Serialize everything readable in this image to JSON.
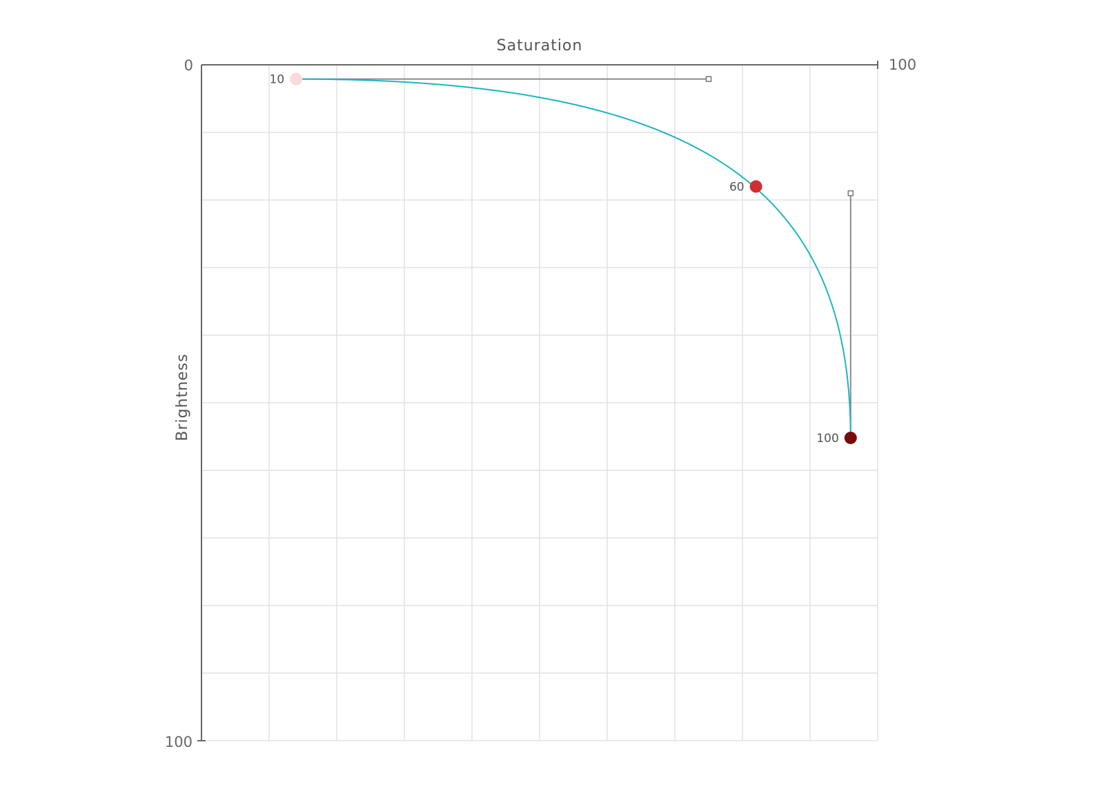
{
  "chart_data": {
    "type": "line",
    "xlabel": "Saturation",
    "ylabel": "Brightness",
    "xlim": [
      0,
      100
    ],
    "ylim": [
      0,
      100
    ],
    "x_axis_position": "top",
    "y_axis_inverted": true,
    "x_end_labels": {
      "min": "0",
      "max": "100"
    },
    "y_end_labels": {
      "min": "0",
      "max": "100"
    },
    "grid": true,
    "grid_divisions": 10,
    "curve_color": "#1ab5c4",
    "curve": {
      "type": "cubic-bezier",
      "start": {
        "x": 14,
        "y": 2.1
      },
      "control1": {
        "x": 75,
        "y": 2.1
      },
      "control2": {
        "x": 96,
        "y": 19
      },
      "end": {
        "x": 96,
        "y": 55.2
      }
    },
    "points": [
      {
        "label": "10",
        "x": 14,
        "y": 2.1,
        "color": "#fadada"
      },
      {
        "label": "60",
        "x": 82,
        "y": 18,
        "color": "#d0302f"
      },
      {
        "label": "100",
        "x": 96,
        "y": 55.2,
        "color": "#7a0a0a"
      }
    ],
    "handles": [
      {
        "from": {
          "x": 14,
          "y": 2.1
        },
        "to": {
          "x": 75,
          "y": 2.1
        }
      },
      {
        "from": {
          "x": 96,
          "y": 55.2
        },
        "to": {
          "x": 96,
          "y": 19
        }
      }
    ]
  }
}
